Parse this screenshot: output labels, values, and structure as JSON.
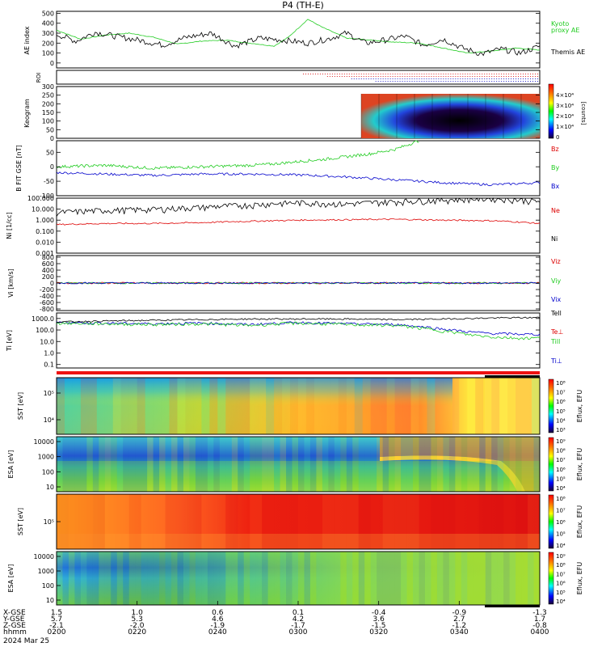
{
  "title": "P4 (TH-E)",
  "chart_data": {
    "type": "line",
    "title": "P4 (TH-E)",
    "time_ticks": [
      "0200",
      "0220",
      "0240",
      "0300",
      "0320",
      "0340",
      "0400"
    ],
    "date": "2024 Mar 25",
    "orbit_rows": {
      "labels": [
        "X-GSE",
        "Y-GSE",
        "Z-GSE",
        "hhmm"
      ],
      "values": [
        [
          "1.5",
          "1.0",
          "0.6",
          "0.1",
          "-0.4",
          "-0.9",
          "-1.3"
        ],
        [
          "5.7",
          "5.3",
          "4.6",
          "4.2",
          "3.6",
          "2.7",
          "1.7"
        ],
        [
          "-2.1",
          "-2.0",
          "-1.9",
          "-1.7",
          "-1.5",
          "-1.2",
          "-0.8"
        ]
      ]
    },
    "panels": {
      "ae": {
        "ylabel": "AE index",
        "yticks": [
          "500",
          "400",
          "300",
          "200",
          "100",
          "0"
        ],
        "ylim": [
          -50,
          520
        ],
        "series": [
          {
            "name": "Themis AE",
            "color": "#000000",
            "x": [
              0,
              0.04,
              0.08,
              0.12,
              0.17,
              0.22,
              0.27,
              0.32,
              0.37,
              0.42,
              0.47,
              0.52,
              0.56,
              0.6,
              0.64,
              0.68,
              0.72,
              0.76,
              0.8,
              0.84,
              0.88,
              0.92,
              0.96,
              1.0
            ],
            "y": [
              290,
              220,
              310,
              270,
              230,
              180,
              260,
              300,
              170,
              250,
              230,
              200,
              240,
              300,
              200,
              230,
              270,
              180,
              240,
              150,
              90,
              140,
              100,
              170
            ]
          },
          {
            "name": "Kyoto proxy AE",
            "color": "#22cc22",
            "x": [
              0,
              0.05,
              0.1,
              0.15,
              0.2,
              0.25,
              0.3,
              0.35,
              0.4,
              0.45,
              0.48,
              0.5,
              0.52,
              0.55,
              0.6,
              0.65,
              0.7,
              0.75,
              0.8,
              0.85,
              0.9,
              0.95,
              1.0
            ],
            "y": [
              330,
              240,
              280,
              300,
              260,
              190,
              220,
              230,
              200,
              170,
              260,
              350,
              440,
              360,
              250,
              230,
              210,
              200,
              150,
              100,
              120,
              150,
              130
            ]
          }
        ]
      },
      "roi": {
        "ylabel": "ROI"
      },
      "keogram": {
        "ylabel": "Keogram",
        "yticks": [
          "300",
          "250",
          "200",
          "150",
          "100",
          "50",
          "0"
        ],
        "ylim": [
          0,
          300
        ],
        "colorbar_ticks": [
          "4×10⁴",
          "3×10⁴",
          "2×10⁴",
          "1×10⁴",
          "0"
        ],
        "colorbar_label": "[counts]",
        "start_fraction": 0.61
      },
      "bfield": {
        "ylabel": "B FIT GSE [nT]",
        "yticks": [
          "50",
          "0",
          "-50",
          "-100"
        ],
        "ylim": [
          -100,
          90
        ],
        "series": [
          {
            "name": "Bz",
            "color": "#dd0000",
            "x": [],
            "y": []
          },
          {
            "name": "By",
            "color": "#22cc22",
            "x": [
              0,
              0.1,
              0.2,
              0.3,
              0.4,
              0.45,
              0.5,
              0.55,
              0.6,
              0.65,
              0.7,
              0.75
            ],
            "y": [
              0,
              5,
              -5,
              0,
              5,
              10,
              18,
              25,
              35,
              45,
              60,
              90
            ]
          },
          {
            "name": "Bx",
            "color": "#0000cc",
            "x": [
              0,
              0.1,
              0.2,
              0.3,
              0.4,
              0.5,
              0.6,
              0.7,
              0.8,
              0.9,
              1.0
            ],
            "y": [
              -20,
              -25,
              -30,
              -25,
              -25,
              -28,
              -35,
              -45,
              -55,
              -62,
              -55
            ]
          }
        ]
      },
      "density": {
        "ylabel": "Ni [1/cc]",
        "yticks": [
          "100.000",
          "10.000",
          "1.000",
          "0.100",
          "0.010",
          "0.001"
        ],
        "ylim_log": [
          0.001,
          100
        ],
        "series": [
          {
            "name": "Ne",
            "color": "#dd0000",
            "x": [
              0,
              0.1,
              0.2,
              0.3,
              0.4,
              0.5,
              0.6,
              0.7,
              0.8,
              0.9,
              1.0
            ],
            "y": [
              0.4,
              0.5,
              0.5,
              0.6,
              0.8,
              1.0,
              1.1,
              1.2,
              1.0,
              0.9,
              0.5
            ]
          },
          {
            "name": "Ni",
            "color": "#000000",
            "x": [
              0,
              0.1,
              0.2,
              0.3,
              0.4,
              0.5,
              0.6,
              0.7,
              0.8,
              0.9,
              1.0
            ],
            "y": [
              5,
              8,
              10,
              15,
              25,
              40,
              30,
              50,
              70,
              100,
              50
            ]
          }
        ]
      },
      "velocity": {
        "ylabel": "Vi [km/s]",
        "yticks": [
          "800",
          "600",
          "400",
          "200",
          "0",
          "-200",
          "-400",
          "-600",
          "-800"
        ],
        "ylim": [
          -850,
          850
        ],
        "series": [
          {
            "name": "Viz",
            "color": "#dd0000"
          },
          {
            "name": "Viy",
            "color": "#22cc22"
          },
          {
            "name": "Vix",
            "color": "#0000cc"
          }
        ]
      },
      "temperature": {
        "ylabel": "Ti [eV]",
        "yticks": [
          "1000.0",
          "100.0",
          "10.0",
          "1.0",
          "0.1"
        ],
        "ylim_log": [
          0.05,
          3000
        ],
        "series": [
          {
            "name": "Tell",
            "color": "#000000",
            "x": [
              0,
              0.1,
              0.2,
              0.3,
              0.4,
              0.5,
              0.6,
              0.7,
              0.8,
              0.9,
              1.0
            ],
            "y": [
              500,
              600,
              700,
              800,
              900,
              900,
              900,
              800,
              900,
              1100,
              1200
            ]
          },
          {
            "name": "Te⊥",
            "color": "#dd0000",
            "x": [],
            "y": []
          },
          {
            "name": "Till",
            "color": "#22cc22",
            "x": [
              0,
              0.1,
              0.2,
              0.3,
              0.4,
              0.5,
              0.6,
              0.7,
              0.75,
              0.8,
              0.85,
              0.9,
              0.95,
              1.0
            ],
            "y": [
              400,
              350,
              300,
              350,
              250,
              400,
              300,
              250,
              150,
              80,
              40,
              25,
              20,
              20
            ]
          },
          {
            "name": "Ti⊥",
            "color": "#0000cc",
            "x": [
              0,
              0.1,
              0.2,
              0.3,
              0.4,
              0.5,
              0.6,
              0.7,
              0.75,
              0.8,
              0.85,
              0.9,
              0.95,
              1.0
            ],
            "y": [
              450,
              400,
              350,
              400,
              300,
              450,
              350,
              300,
              200,
              120,
              70,
              50,
              45,
              40
            ]
          }
        ]
      },
      "sst_e": {
        "ylabel": "SST [eV]",
        "cb_label": "Eflux, EFU",
        "yticks": [
          "10⁵",
          "10⁴"
        ],
        "cb_ticks": [
          "10⁸",
          "10⁷",
          "10⁶",
          "10⁵",
          "10⁴",
          "10³"
        ]
      },
      "esa_e": {
        "ylabel": "ESA [eV]",
        "cb_label": "Eflux, EFU",
        "yticks": [
          "10000",
          "1000",
          "100",
          "10"
        ],
        "cb_ticks": [
          "10⁹",
          "10⁸",
          "10⁷",
          "10⁶",
          "10⁵",
          "10⁴"
        ]
      },
      "sst_i": {
        "ylabel": "SST [eV]",
        "cb_label": "Eflux, EFU",
        "yticks": [
          "10⁵"
        ],
        "cb_ticks": [
          "10⁸",
          "10⁷",
          "10⁶",
          "10⁵",
          "10⁴"
        ]
      },
      "esa_i": {
        "ylabel": "ESA [eV]",
        "cb_label": "Eflux, EFU",
        "yticks": [
          "10000",
          "1000",
          "100",
          "10"
        ],
        "cb_ticks": [
          "10⁹",
          "10⁸",
          "10⁷",
          "10⁶",
          "10⁵",
          "10⁴"
        ]
      }
    }
  }
}
